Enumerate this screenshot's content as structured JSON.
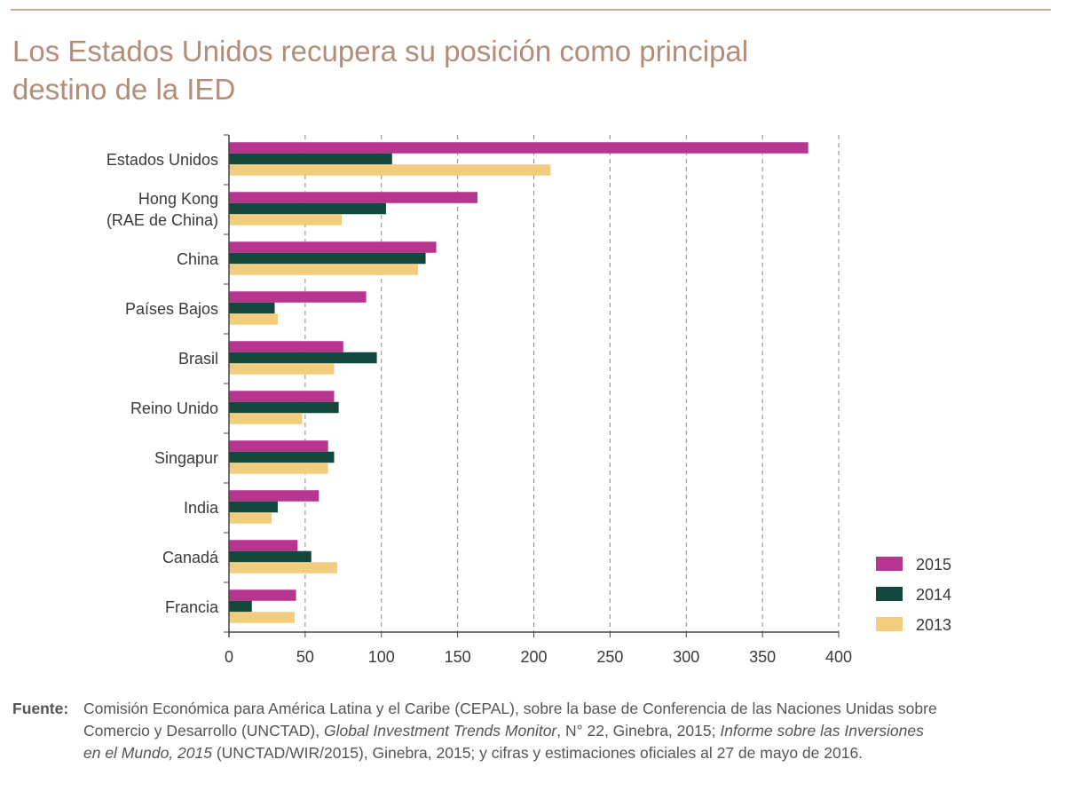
{
  "title_lines": [
    "Los Estados Unidos recupera su posición como principal",
    "destino de la IED"
  ],
  "chart_data": {
    "type": "bar",
    "orientation": "horizontal",
    "categories": [
      [
        "Estados Unidos"
      ],
      [
        "Hong Kong",
        "(RAE de China)"
      ],
      [
        "China"
      ],
      [
        "Países Bajos"
      ],
      [
        "Brasil"
      ],
      [
        "Reino Unido"
      ],
      [
        "Singapur"
      ],
      [
        "India"
      ],
      [
        "Canadá"
      ],
      [
        "Francia"
      ]
    ],
    "series": [
      {
        "name": "2015",
        "color": "#b5358f",
        "values": [
          380,
          163,
          136,
          90,
          75,
          69,
          65,
          59,
          45,
          44
        ]
      },
      {
        "name": "2014",
        "color": "#12473b",
        "values": [
          107,
          103,
          129,
          30,
          97,
          72,
          69,
          32,
          54,
          15
        ]
      },
      {
        "name": "2013",
        "color": "#f3cc7d",
        "values": [
          211,
          74,
          124,
          32,
          69,
          48,
          65,
          28,
          71,
          43
        ]
      }
    ],
    "xlim": [
      0,
      400
    ],
    "xticks": [
      "0",
      "50",
      "100",
      "150",
      "200",
      "250",
      "300",
      "350",
      "400"
    ],
    "grid": "vertical dashed",
    "legend_position": "bottom-right"
  },
  "source": {
    "lead": "Fuente",
    "lines": [
      [
        {
          "t": "Comisión Económica para América Latina y el Caribe (CEPAL), sobre la base de Conferencia de las Naciones Unidas sobre",
          "i": false
        }
      ],
      [
        {
          "t": "Comercio y Desarrollo (UNCTAD), ",
          "i": false
        },
        {
          "t": "Global Investment Trends Monitor",
          "i": true
        },
        {
          "t": ", N° 22, Ginebra, 2015; ",
          "i": false
        },
        {
          "t": "Informe sobre las Inversiones",
          "i": true
        }
      ],
      [
        {
          "t": "en el Mundo, 2015",
          "i": true
        },
        {
          "t": " (UNCTAD/WIR/2015), Ginebra, 2015; y cifras y estimaciones oficiales al 27 de mayo de 2016.",
          "i": false
        }
      ]
    ]
  }
}
